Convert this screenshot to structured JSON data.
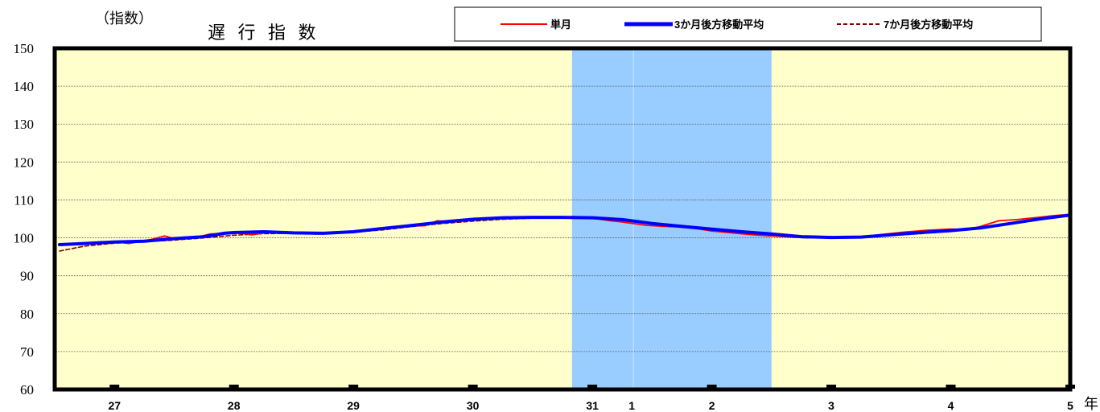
{
  "chart_data": {
    "type": "line",
    "title": "遅 行 指 数",
    "ylabel": "（指数）",
    "x_unit_label": "年",
    "ylim": [
      60,
      150
    ],
    "yticks": [
      60,
      70,
      80,
      90,
      100,
      110,
      120,
      130,
      140,
      150
    ],
    "grid": true,
    "legend_position": "top",
    "plot_background": "#ffffcc",
    "shade_color": "#99ccff",
    "x_range": [
      2014.5,
      2023.0
    ],
    "shaded_ranges": [
      [
        2018.83,
        2020.5
      ]
    ],
    "x_ticks": [
      {
        "x": 2015.0,
        "label": "27"
      },
      {
        "x": 2016.0,
        "label": "28"
      },
      {
        "x": 2017.0,
        "label": "29"
      },
      {
        "x": 2018.0,
        "label": "30"
      },
      {
        "x": 2019.0,
        "label": "31"
      },
      {
        "x": 2019.33,
        "label": "1"
      },
      {
        "x": 2020.0,
        "label": "2"
      },
      {
        "x": 2021.0,
        "label": "3"
      },
      {
        "x": 2022.0,
        "label": "4"
      },
      {
        "x": 2023.0,
        "label": "5"
      }
    ],
    "series": [
      {
        "name": "単月",
        "color": "#ff0000",
        "style": "solid",
        "x": [
          2014.54,
          2014.75,
          2015.0,
          2015.12,
          2015.3,
          2015.42,
          2015.5,
          2015.7,
          2015.8,
          2015.92,
          2016.0,
          2016.15,
          2016.3,
          2016.5,
          2016.7,
          2016.9,
          2017.0,
          2017.2,
          2017.4,
          2017.6,
          2017.7,
          2017.85,
          2018.0,
          2018.2,
          2018.4,
          2018.6,
          2018.7,
          2018.85,
          2019.0,
          2019.15,
          2019.25,
          2019.45,
          2019.6,
          2019.8,
          2020.0,
          2020.1,
          2020.2,
          2020.35,
          2020.55,
          2020.8,
          2021.0,
          2021.2,
          2021.4,
          2021.6,
          2021.8,
          2022.0,
          2022.15,
          2022.25,
          2022.4,
          2022.55,
          2022.7,
          2022.85,
          2023.0
        ],
        "values": [
          98,
          98.5,
          99,
          98.5,
          99.5,
          100.5,
          99.8,
          100.2,
          101,
          101.2,
          101.5,
          100.8,
          101.5,
          101.2,
          101,
          101.3,
          101.5,
          102.5,
          103,
          103.2,
          104.5,
          104.3,
          105,
          105.3,
          105.5,
          105.4,
          105.2,
          105.6,
          105.2,
          104.5,
          104.2,
          103.3,
          103,
          102.8,
          101.8,
          101.5,
          101.2,
          100.8,
          100.4,
          100,
          100.3,
          100,
          100.8,
          101.5,
          102,
          102.3,
          102.2,
          103,
          104.5,
          104.8,
          105.3,
          105.8,
          106.2
        ]
      },
      {
        "name": "3か月後方移動平均",
        "color": "#0000ff",
        "style": "thick",
        "x": [
          2014.54,
          2014.75,
          2015.0,
          2015.25,
          2015.5,
          2015.75,
          2015.92,
          2016.0,
          2016.25,
          2016.5,
          2016.75,
          2017.0,
          2017.25,
          2017.5,
          2017.75,
          2018.0,
          2018.25,
          2018.5,
          2018.75,
          2019.0,
          2019.25,
          2019.5,
          2019.75,
          2020.0,
          2020.25,
          2020.5,
          2020.75,
          2021.0,
          2021.25,
          2021.5,
          2021.75,
          2022.0,
          2022.25,
          2022.5,
          2022.75,
          2023.0
        ],
        "values": [
          98.2,
          98.5,
          98.9,
          99.1,
          99.8,
          100.3,
          101.2,
          101.4,
          101.6,
          101.3,
          101.2,
          101.6,
          102.5,
          103.3,
          104.2,
          104.9,
          105.3,
          105.4,
          105.4,
          105.3,
          104.8,
          103.8,
          103,
          102.3,
          101.6,
          101,
          100.3,
          100.1,
          100.2,
          100.8,
          101.4,
          101.9,
          102.6,
          103.8,
          105,
          106
        ]
      },
      {
        "name": "7か月後方移動平均",
        "color": "#800000",
        "style": "dashed",
        "x": [
          2014.54,
          2014.75,
          2015.0,
          2015.25,
          2015.5,
          2015.75,
          2016.0,
          2016.25,
          2016.5,
          2016.75,
          2017.0,
          2017.25,
          2017.5,
          2017.75,
          2018.0,
          2018.25,
          2018.5,
          2018.75,
          2019.0,
          2019.25,
          2019.5,
          2019.75,
          2020.0,
          2020.25,
          2020.5,
          2020.75,
          2021.0,
          2021.25,
          2021.5,
          2021.75,
          2022.0,
          2022.25,
          2022.5,
          2022.75,
          2023.0
        ],
        "values": [
          96.5,
          97.8,
          98.6,
          99,
          99.4,
          100,
          100.7,
          101.1,
          101.2,
          101.3,
          101.5,
          102.1,
          103,
          103.8,
          104.4,
          104.9,
          105.2,
          105.3,
          105.1,
          104.6,
          103.9,
          103,
          102.3,
          101.8,
          101.1,
          100.5,
          100.2,
          100.1,
          100.6,
          101.1,
          101.8,
          102.5,
          103.6,
          104.8,
          105.8
        ]
      }
    ]
  }
}
